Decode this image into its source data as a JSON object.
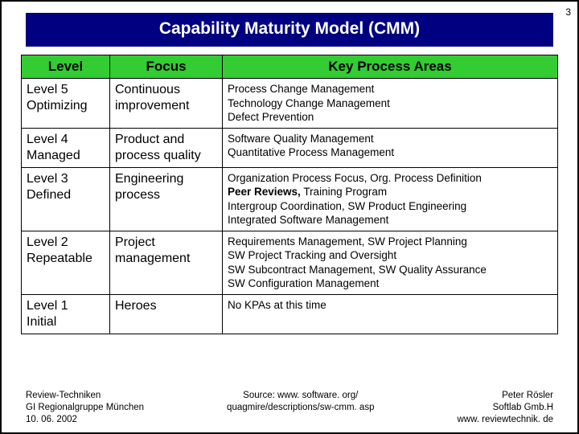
{
  "page_number": "3",
  "title": "Capability Maturity Model (CMM)",
  "table": {
    "headers": {
      "level": "Level",
      "focus": "Focus",
      "kpa": "Key Process Areas"
    },
    "header_bg": "#33cc33",
    "rows": [
      {
        "level_line1": "Level 5",
        "level_line2": "Optimizing",
        "focus_line1": "Continuous",
        "focus_line2": "improvement",
        "kpa_html": "Process Change Management<br>Technology Change Management<br>Defect Prevention"
      },
      {
        "level_line1": "Level 4",
        "level_line2": "Managed",
        "focus_line1": "Product and",
        "focus_line2": "process quality",
        "kpa_html": "Software Quality Management<br>Quantitative Process Management"
      },
      {
        "level_line1": "Level 3",
        "level_line2": "Defined",
        "focus_line1": "Engineering",
        "focus_line2": "process",
        "kpa_html": "Organization Process Focus, Org. Process Definition<br><b>Peer Reviews,</b> Training Program<br>Intergroup Coordination, SW Product Engineering<br>Integrated Software Management"
      },
      {
        "level_line1": "Level 2",
        "level_line2": "Repeatable",
        "focus_line1": "Project",
        "focus_line2": "management",
        "kpa_html": "Requirements Management, SW Project Planning<br>SW Project Tracking and Oversight<br>SW Subcontract Management, SW Quality Assurance<br>SW Configuration Management"
      },
      {
        "level_line1": "Level 1",
        "level_line2": "Initial",
        "focus_line1": "Heroes",
        "focus_line2": "",
        "kpa_html": "No KPAs at this time"
      }
    ]
  },
  "footer": {
    "left_line1": "Review-Techniken",
    "left_line2": "GI Regionalgruppe München",
    "left_line3": "10. 06. 2002",
    "center_line1": "Source:  www. software. org/",
    "center_line2": "quagmire/descriptions/sw-cmm. asp",
    "right_line1": "Peter Rösler",
    "right_line2": "Softlab Gmb.H",
    "right_line3": "www. reviewtechnik. de"
  }
}
